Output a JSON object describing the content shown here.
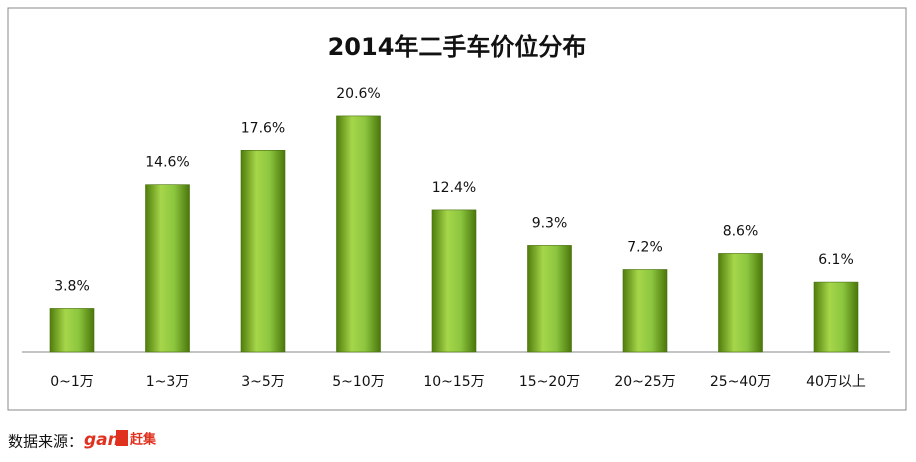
{
  "chart_data": {
    "type": "bar",
    "title": "2014年二手车价位分布",
    "categories": [
      "0~1万",
      "1~3万",
      "3~5万",
      "5~10万",
      "10~15万",
      "15~20万",
      "20~25万",
      "25~40万",
      "40万以上"
    ],
    "values": [
      3.8,
      14.6,
      17.6,
      20.6,
      12.4,
      9.3,
      7.2,
      8.6,
      6.1
    ],
    "value_labels": [
      "3.8%",
      "14.6%",
      "17.6%",
      "20.6%",
      "12.4%",
      "9.3%",
      "7.2%",
      "8.6%",
      "6.1%"
    ],
    "color": "#8cc63f",
    "source": "数据来源：",
    "source_logo": [
      "gan",
      "赶集"
    ]
  }
}
